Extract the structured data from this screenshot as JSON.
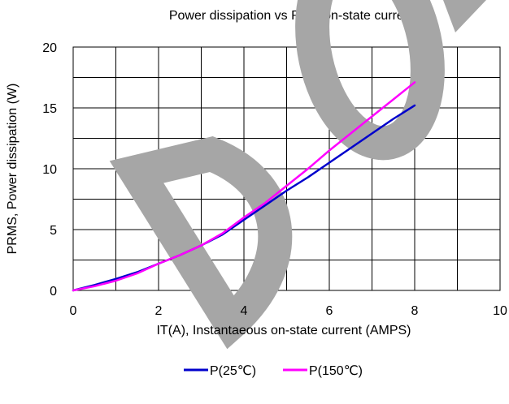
{
  "chart_data": {
    "type": "line",
    "title": "Power dissipation vs RMS on-state current",
    "xlabel": "IT(A), Instantaeous on-state current (AMPS)",
    "ylabel": "PRMS, Power dissipation (W)",
    "xlim": [
      0,
      10
    ],
    "ylim": [
      0,
      20
    ],
    "x_ticks": [
      "0",
      "2",
      "4",
      "6",
      "8",
      "10"
    ],
    "y_ticks": [
      "0",
      "5",
      "10",
      "15",
      "20"
    ],
    "grid": true,
    "legend_position": "bottom",
    "watermark": "DO",
    "series": [
      {
        "name": "P(25℃)",
        "color": "#0000CC",
        "x": [
          0,
          0.5,
          1,
          1.5,
          2,
          2.5,
          3,
          3.5,
          4,
          4.5,
          5,
          5.5,
          6,
          6.5,
          7,
          7.5,
          8
        ],
        "y": [
          0,
          0.45,
          0.95,
          1.5,
          2.2,
          2.9,
          3.7,
          4.6,
          5.8,
          7.0,
          8.2,
          9.3,
          10.5,
          11.7,
          12.9,
          14.1,
          15.2
        ]
      },
      {
        "name": "P(150℃)",
        "color": "#FF00FF",
        "x": [
          0,
          0.5,
          1,
          1.5,
          2,
          2.5,
          3,
          3.5,
          4,
          4.5,
          5,
          5.5,
          6,
          6.5,
          7,
          7.5,
          8
        ],
        "y": [
          0,
          0.35,
          0.8,
          1.4,
          2.2,
          2.9,
          3.7,
          4.7,
          6.0,
          7.2,
          8.6,
          10.0,
          11.5,
          12.9,
          14.3,
          15.7,
          17.1
        ]
      }
    ]
  }
}
